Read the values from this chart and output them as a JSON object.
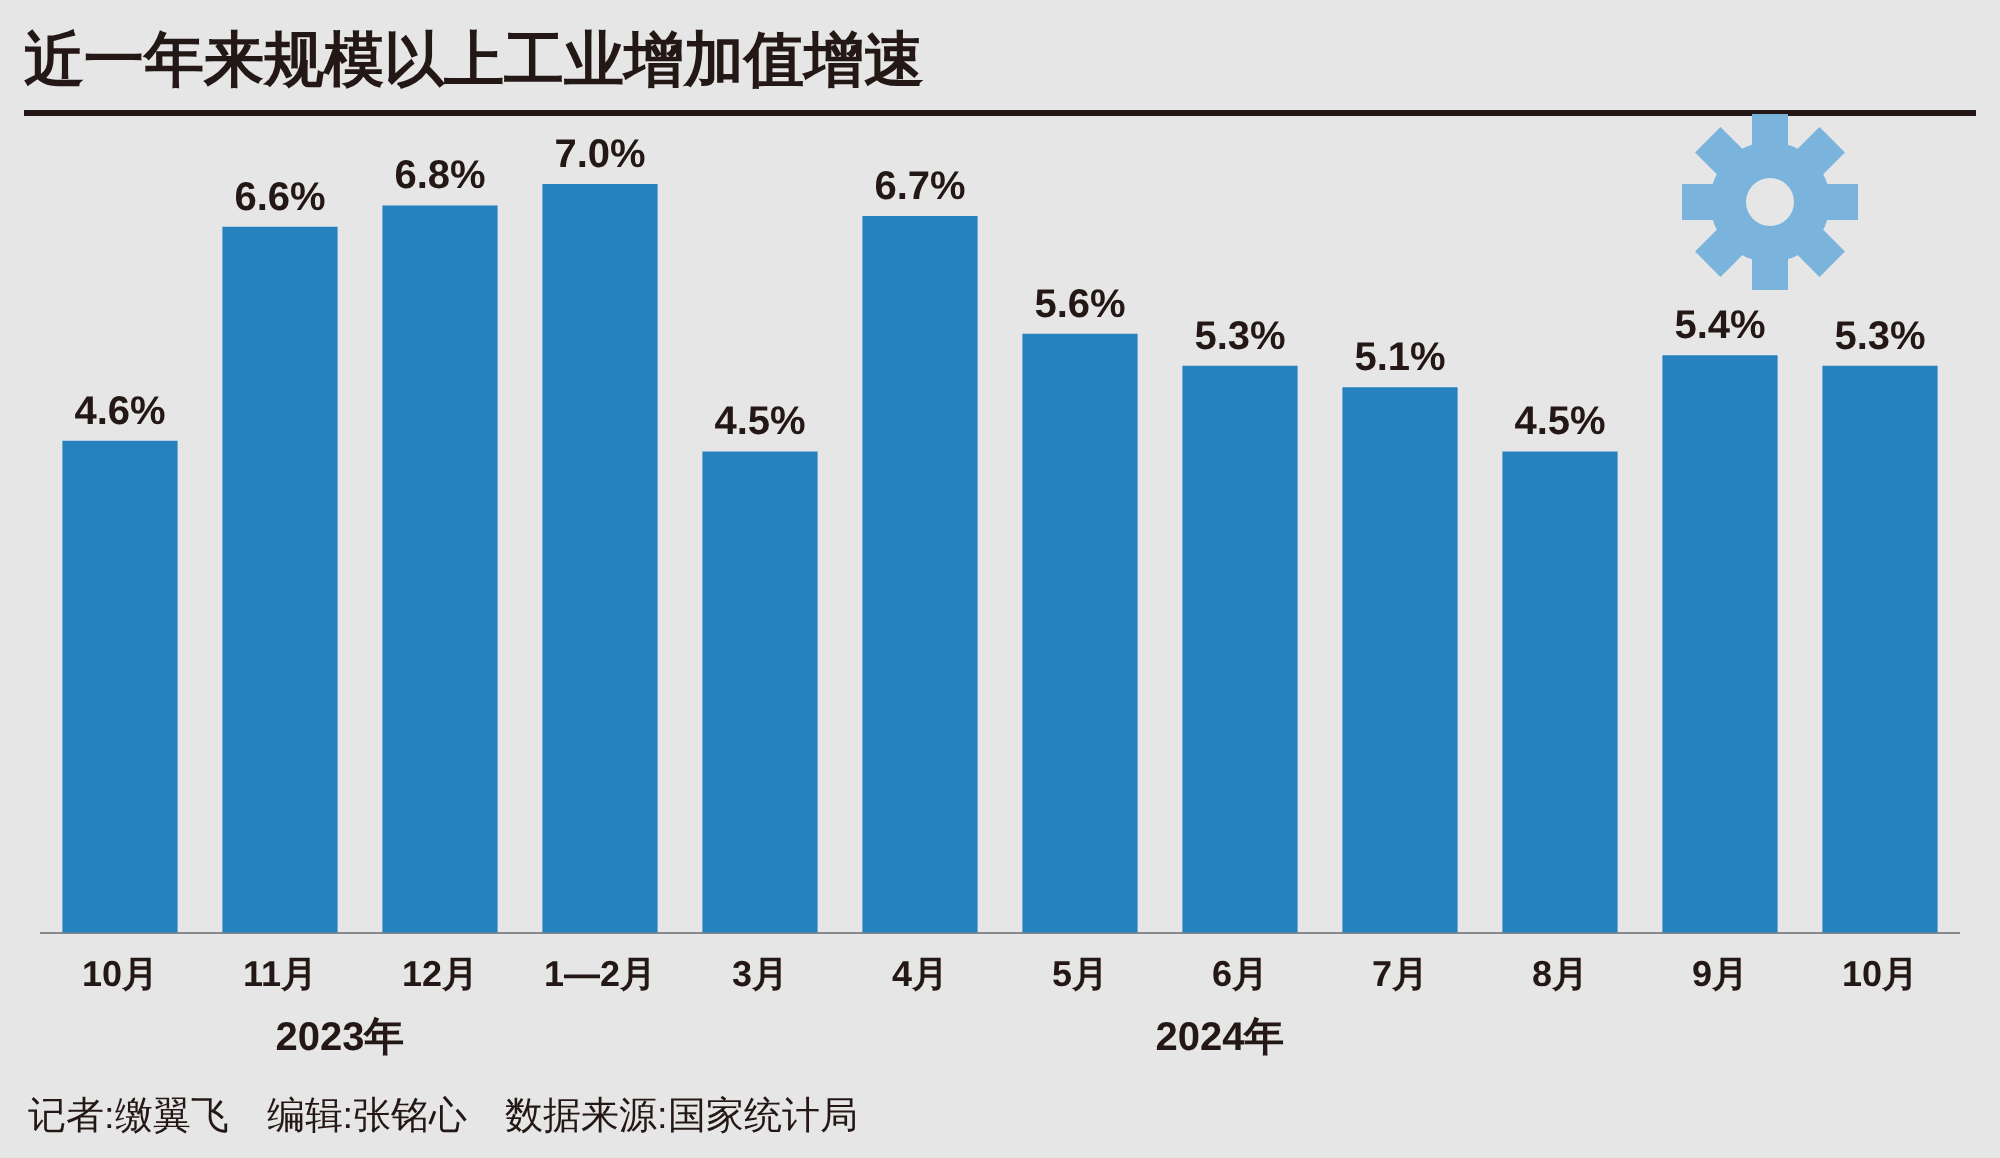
{
  "chart_data": {
    "type": "bar",
    "title": "近一年来规模以上工业增加值增速",
    "categories": [
      "10月",
      "11月",
      "12月",
      "1—2月",
      "3月",
      "4月",
      "5月",
      "6月",
      "7月",
      "8月",
      "9月",
      "10月"
    ],
    "values": [
      4.6,
      6.6,
      6.8,
      7.0,
      4.5,
      6.7,
      5.6,
      5.3,
      5.1,
      4.5,
      5.4,
      5.3
    ],
    "value_labels": [
      "4.6%",
      "6.6%",
      "6.8%",
      "7.0%",
      "4.5%",
      "6.7%",
      "5.6%",
      "5.3%",
      "5.1%",
      "4.5%",
      "5.4%",
      "5.3%"
    ],
    "color": "#2582bf",
    "grid": false,
    "legend": false,
    "annotations": [
      "2023年",
      "2024年",
      "记者:缴翼飞　编辑:张铭心　数据来源:国家统计局"
    ]
  }
}
